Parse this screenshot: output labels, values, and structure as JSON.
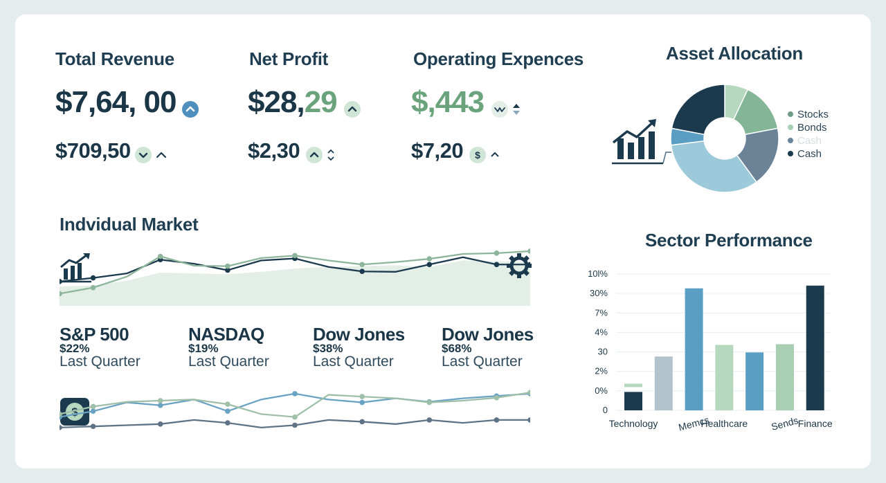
{
  "kpis": [
    {
      "title": "Total Revenue",
      "value": "$7,64, 00",
      "sub_value": "$709,50"
    },
    {
      "title": "Net Profit",
      "value_a": "$28,",
      "value_b": "29",
      "sub_value": "$2,30"
    },
    {
      "title": "Operating Expences",
      "value": "$,443",
      "sub_value": "$7,20"
    }
  ],
  "asset_allocation": {
    "title": "Asset Allocation",
    "legend": [
      {
        "label": "Stocks",
        "color": "#6f9c85"
      },
      {
        "label": "Bonds",
        "color": "#a9cfb2"
      },
      {
        "label": "Cash",
        "color": "#67859b",
        "faded": true
      },
      {
        "label": "Cash",
        "color": "#1c3a4e"
      }
    ]
  },
  "individual_market": {
    "title": "Indvidual Market",
    "markets": [
      {
        "name": "S&P 500",
        "pct": "$22%",
        "sub": "Last Quarter"
      },
      {
        "name": "NASDAQ",
        "pct": "$19%",
        "sub": "Last Quarter"
      },
      {
        "name": "Dow Jones",
        "pct": "$38%",
        "sub": "Last Quarter"
      },
      {
        "name": "Dow Jones",
        "pct": "$68%",
        "sub": "Last Quarter"
      }
    ]
  },
  "sector_performance": {
    "title": "Sector Performance"
  },
  "colors": {
    "navy": "#1c3a4e",
    "slate": "#5f7a8f",
    "teal_blue": "#5b9ec4",
    "light_blue": "#9ccadb",
    "sage": "#84b597",
    "mint": "#b5d8bf",
    "gray": "#b3c3cb"
  },
  "chart_data": [
    {
      "type": "pie",
      "title": "Asset Allocation",
      "slices": [
        {
          "label": "Bonds",
          "value": 7,
          "color": "#b5d8bf"
        },
        {
          "label": "Stocks",
          "value": 15,
          "color": "#84b597"
        },
        {
          "label": "",
          "value": 18,
          "color": "#6b8297"
        },
        {
          "label": "",
          "value": 33,
          "color": "#9ccadb"
        },
        {
          "label": "",
          "value": 5,
          "color": "#5b9ec4"
        },
        {
          "label": "Cash",
          "value": 22,
          "color": "#1c3a4e"
        }
      ]
    },
    {
      "type": "line",
      "title": "Indvidual Market",
      "x": [
        0,
        1,
        2,
        3,
        4,
        5,
        6,
        7,
        8,
        9,
        10,
        11,
        12,
        13,
        14
      ],
      "series": [
        {
          "values": [
            60,
            69,
            80,
            114,
            104,
            88,
            112,
            117,
            96,
            85,
            84,
            102,
            120,
            102,
            102
          ],
          "color": "#1c3a4e"
        },
        {
          "values": [
            30,
            45,
            72,
            122,
            99,
            98,
            118,
            124,
            112,
            102,
            108,
            116,
            128,
            130,
            135
          ],
          "color": "#8db59c"
        },
        {
          "values": [
            48,
            50,
            62,
            82,
            80,
            78,
            84,
            92,
            96,
            98,
            100,
            96,
            112,
            110,
            108
          ],
          "color": "#cfe3d5",
          "area": true
        }
      ],
      "ylim": [
        0,
        140
      ]
    },
    {
      "type": "line",
      "x": [
        0,
        1,
        2,
        3,
        4,
        5,
        6,
        7,
        8,
        9,
        10,
        11,
        12,
        13,
        14
      ],
      "series": [
        {
          "values": [
            12,
            14,
            16,
            18,
            25,
            20,
            12,
            16,
            25,
            22,
            18,
            25,
            20,
            25,
            25
          ],
          "color": "#5f7386"
        },
        {
          "values": [
            30,
            40,
            55,
            50,
            60,
            40,
            60,
            70,
            60,
            55,
            62,
            56,
            62,
            66,
            70
          ],
          "color": "#6aa2c4"
        },
        {
          "values": [
            35,
            48,
            56,
            58,
            60,
            52,
            35,
            30,
            68,
            65,
            62,
            55,
            58,
            63,
            72
          ],
          "color": "#9fbfa9"
        }
      ],
      "ylim": [
        0,
        90
      ]
    },
    {
      "type": "bar",
      "title": "Sector Performance",
      "categories": [
        "Technology",
        "",
        "Memcs",
        "Healthcare",
        "",
        "Sends",
        "Finance"
      ],
      "tick_labels_y": [
        "0",
        "0%",
        "2%",
        "30",
        "4%",
        "7%",
        "30%",
        "10l%"
      ],
      "values": [
        27,
        79,
        179,
        96,
        85,
        97,
        183
      ],
      "colors": [
        "#1c3a4e",
        "#b3c3cb",
        "#5b9ec4",
        "#b5d8bf",
        "#5b9ec4",
        "#a9cfb2",
        "#1c3a4e"
      ],
      "ylim": [
        0,
        200
      ]
    }
  ]
}
